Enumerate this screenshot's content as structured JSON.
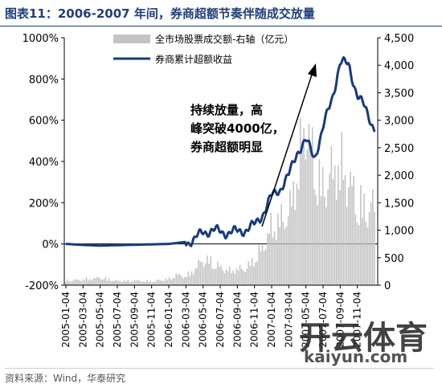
{
  "header": {
    "title": "图表11：2006-2007 年间，券商超额节奏伴随成交放量"
  },
  "source": "资料来源：Wind，华泰研究",
  "watermark": {
    "brand": "开云体育",
    "url": "kaiyun.com"
  },
  "chart_data": {
    "type": "bar+line",
    "colors": {
      "bars": "#c4c4c4",
      "line": "#173a80"
    },
    "y_left": {
      "range": [
        -200,
        1000
      ],
      "ticks": [
        "1000%",
        "800%",
        "600%",
        "400%",
        "200%",
        "0%",
        "-200%"
      ]
    },
    "y_right": {
      "range": [
        0,
        4500
      ],
      "ticks": [
        "4,500",
        "4,000",
        "3,500",
        "3,000",
        "2,500",
        "2,000",
        "1,500",
        "1,000",
        "500",
        "0"
      ]
    },
    "x_tick_labels": [
      "2005-01-04",
      "2005-03-04",
      "2005-05-04",
      "2005-07-04",
      "2005-09-04",
      "2005-11-04",
      "2006-01-04",
      "2006-03-04",
      "2006-05-04",
      "2006-07-04",
      "2006-09-04",
      "2006-11-04",
      "2007-01-04",
      "2007-03-04",
      "2007-05-04",
      "2007-07-04",
      "2007-09-04",
      "2007-11-04"
    ],
    "legend": [
      {
        "label": "全市场股票成交额-右轴（亿元）",
        "kind": "bar"
      },
      {
        "label": "券商累计超额收益",
        "kind": "line"
      }
    ],
    "annotation": [
      "持续放量，高",
      "峰突破4000亿，",
      "券商超额明显"
    ],
    "series": [
      {
        "name": "券商累计超额收益",
        "axis": "left",
        "points": [
          [
            "2005-01",
            0
          ],
          [
            "2005-03",
            -5
          ],
          [
            "2005-05",
            -8
          ],
          [
            "2005-07",
            -6
          ],
          [
            "2005-09",
            -4
          ],
          [
            "2005-11",
            -2
          ],
          [
            "2006-01",
            0
          ],
          [
            "2006-02",
            5
          ],
          [
            "2006-03",
            10
          ],
          [
            "2006-04",
            20
          ],
          [
            "2006-05",
            60
          ],
          [
            "2006-06",
            65
          ],
          [
            "2006-07",
            60
          ],
          [
            "2006-08",
            55
          ],
          [
            "2006-09",
            60
          ],
          [
            "2006-10",
            70
          ],
          [
            "2006-11",
            90
          ],
          [
            "2006-12",
            150
          ],
          [
            "2007-01",
            230
          ],
          [
            "2007-02",
            270
          ],
          [
            "2007-03",
            330
          ],
          [
            "2007-04",
            450
          ],
          [
            "2007-05",
            500
          ],
          [
            "2007-06",
            420
          ],
          [
            "2007-07",
            560
          ],
          [
            "2007-08",
            700
          ],
          [
            "2007-09",
            880
          ],
          [
            "2007-10",
            870
          ],
          [
            "2007-11",
            720
          ],
          [
            "2007-12",
            650
          ],
          [
            "2008-01",
            560
          ]
        ]
      },
      {
        "name": "全市场股票成交额-右轴（亿元）",
        "axis": "right",
        "points": [
          [
            "2005-01",
            110
          ],
          [
            "2005-03",
            130
          ],
          [
            "2005-05",
            180
          ],
          [
            "2005-07",
            100
          ],
          [
            "2005-09",
            110
          ],
          [
            "2005-11",
            90
          ],
          [
            "2006-01",
            150
          ],
          [
            "2006-02",
            250
          ],
          [
            "2006-03",
            200
          ],
          [
            "2006-04",
            380
          ],
          [
            "2006-05",
            620
          ],
          [
            "2006-06",
            560
          ],
          [
            "2006-07",
            420
          ],
          [
            "2006-08",
            350
          ],
          [
            "2006-09",
            380
          ],
          [
            "2006-10",
            400
          ],
          [
            "2006-11",
            620
          ],
          [
            "2006-12",
            900
          ],
          [
            "2007-01",
            1400
          ],
          [
            "2007-02",
            1550
          ],
          [
            "2007-03",
            1700
          ],
          [
            "2007-04",
            2700
          ],
          [
            "2007-05",
            3900
          ],
          [
            "2007-06",
            2800
          ],
          [
            "2007-07",
            2300
          ],
          [
            "2007-08",
            2700
          ],
          [
            "2007-09",
            2900
          ],
          [
            "2007-10",
            2500
          ],
          [
            "2007-11",
            2000
          ],
          [
            "2007-12",
            1800
          ],
          [
            "2008-01",
            1900
          ]
        ]
      }
    ]
  }
}
